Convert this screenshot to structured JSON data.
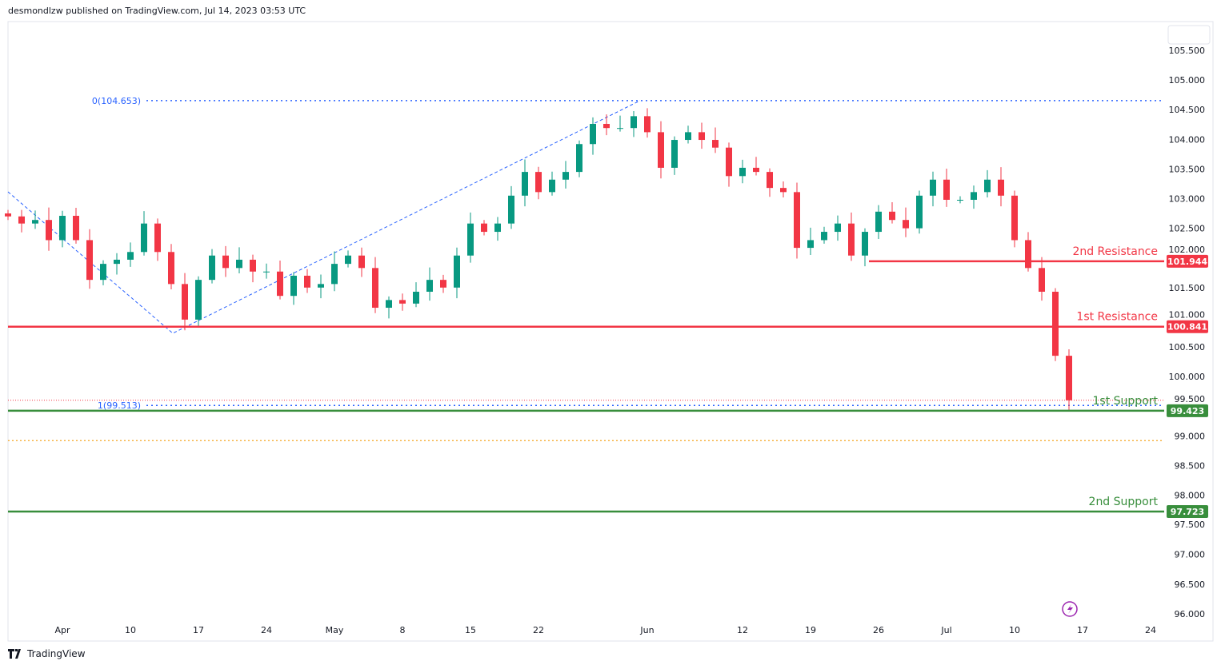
{
  "header": {
    "text": "desmondlzw published on TradingView.com, Jul 14, 2023 03:53 UTC"
  },
  "footer": {
    "logo_text": "TradingView"
  },
  "colors": {
    "up": "#089981",
    "down": "#f23645",
    "resistance": "#f23645",
    "support": "#388e3c",
    "fib": "#2962ff",
    "orange": "#f5a623",
    "lightning": "#9c27b0"
  },
  "chart_data": {
    "type": "candlestick",
    "price_axis": {
      "min": 96.0,
      "max": 105.5,
      "step": 0.5,
      "ticks": [
        "105.500",
        "105.000",
        "104.500",
        "104.000",
        "103.500",
        "103.000",
        "102.500",
        "102.000",
        "101.500",
        "101.000",
        "100.500",
        "100.000",
        "99.500",
        "99.000",
        "98.500",
        "98.000",
        "97.500",
        "97.000",
        "96.500",
        "96.000"
      ]
    },
    "time_axis": {
      "ticks": [
        {
          "label": "Apr",
          "date": "Apr 3"
        },
        {
          "label": "10",
          "date": "Apr 10"
        },
        {
          "label": "17",
          "date": "Apr 17"
        },
        {
          "label": "24",
          "date": "Apr 24"
        },
        {
          "label": "May",
          "date": "May 1"
        },
        {
          "label": "8",
          "date": "May 8"
        },
        {
          "label": "15",
          "date": "May 15"
        },
        {
          "label": "22",
          "date": "May 22"
        },
        {
          "label": "Jun",
          "date": "Jun 1"
        },
        {
          "label": "12",
          "date": "Jun 12"
        },
        {
          "label": "19",
          "date": "Jun 19"
        },
        {
          "label": "26",
          "date": "Jun 26"
        },
        {
          "label": "Jul",
          "date": "Jul 3"
        },
        {
          "label": "10",
          "date": "Jul 10"
        },
        {
          "label": "17",
          "date": "Jul 17"
        },
        {
          "label": "24",
          "date": "Jul 24"
        }
      ]
    },
    "dates": [
      "Mar 28",
      "Mar 29",
      "Mar 30",
      "Mar 31",
      "Apr 3",
      "Apr 4",
      "Apr 5",
      "Apr 6",
      "Apr 7",
      "Apr 10",
      "Apr 11",
      "Apr 12",
      "Apr 13",
      "Apr 14",
      "Apr 17",
      "Apr 18",
      "Apr 19",
      "Apr 20",
      "Apr 21",
      "Apr 24",
      "Apr 25",
      "Apr 26",
      "Apr 27",
      "Apr 28",
      "May 1",
      "May 2",
      "May 3",
      "May 4",
      "May 5",
      "May 8",
      "May 9",
      "May 10",
      "May 11",
      "May 12",
      "May 15",
      "May 16",
      "May 17",
      "May 18",
      "May 19",
      "May 22",
      "May 23",
      "May 24",
      "May 25",
      "May 26",
      "May 29",
      "May 30",
      "May 31",
      "Jun 1",
      "Jun 2",
      "Jun 5",
      "Jun 6",
      "Jun 7",
      "Jun 8",
      "Jun 9",
      "Jun 12",
      "Jun 13",
      "Jun 14",
      "Jun 15",
      "Jun 16",
      "Jun 19",
      "Jun 20",
      "Jun 21",
      "Jun 22",
      "Jun 23",
      "Jun 26",
      "Jun 27",
      "Jun 28",
      "Jun 29",
      "Jun 30",
      "Jul 3",
      "Jul 4",
      "Jul 5",
      "Jul 6",
      "Jul 7",
      "Jul 10",
      "Jul 11",
      "Jul 12",
      "Jul 13",
      "Jul 14"
    ],
    "closes": [
      102.7,
      102.58,
      102.64,
      102.3,
      102.71,
      102.3,
      101.63,
      101.9,
      101.97,
      102.1,
      102.58,
      102.1,
      101.56,
      100.96,
      101.63,
      102.04,
      101.83,
      101.97,
      101.77,
      101.77,
      101.36,
      101.7,
      101.5,
      101.56,
      101.9,
      102.04,
      101.83,
      101.16,
      101.29,
      101.23,
      101.43,
      101.63,
      101.5,
      102.04,
      102.58,
      102.44,
      102.58,
      103.05,
      103.45,
      103.11,
      103.32,
      103.45,
      103.92,
      104.26,
      104.19,
      104.19,
      104.39,
      104.12,
      103.52,
      103.99,
      104.12,
      103.99,
      103.86,
      103.38,
      103.52,
      103.45,
      103.18,
      103.11,
      102.17,
      102.3,
      102.44,
      102.58,
      102.04,
      102.44,
      102.78,
      102.64,
      102.5,
      103.05,
      103.32,
      102.98,
      102.98,
      103.11,
      103.32,
      103.05,
      102.3,
      101.83,
      101.43,
      100.35,
      99.6
    ],
    "levels": [
      {
        "id": "2nd-resistance",
        "label": "2nd Resistance",
        "value": 101.944,
        "tag": "101.944",
        "kind": "resistance",
        "from_date": "Jun 23"
      },
      {
        "id": "1st-resistance",
        "label": "1st Resistance",
        "value": 100.841,
        "tag": "100.841",
        "kind": "resistance"
      },
      {
        "id": "1st-support",
        "label": "1st Support",
        "value": 99.423,
        "tag": "99.423",
        "kind": "support"
      },
      {
        "id": "2nd-support",
        "label": "2nd Support",
        "value": 97.723,
        "tag": "97.723",
        "kind": "support"
      }
    ],
    "fib": {
      "level0_label": "0(104.653)",
      "level0": 104.653,
      "level1_label": "1(99.513)",
      "level1": 99.513,
      "anchor_date": "Apr 13"
    },
    "orange_dotted_level": 98.92,
    "last_price": 99.6
  }
}
